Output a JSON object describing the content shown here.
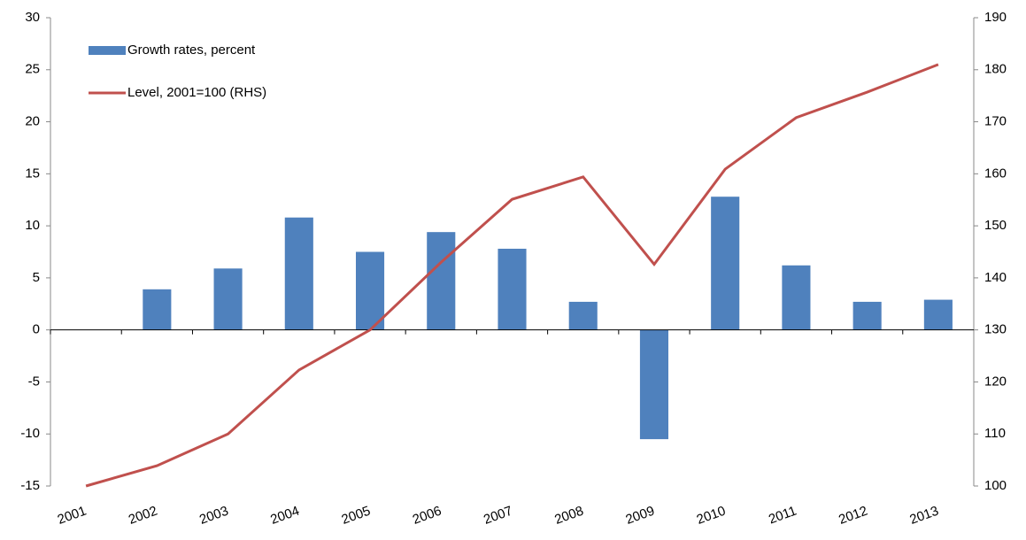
{
  "chart_data": {
    "type": "bar-line",
    "categories": [
      "2001",
      "2002",
      "2003",
      "2004",
      "2005",
      "2006",
      "2007",
      "2008",
      "2009",
      "2010",
      "2011",
      "2012",
      "2013"
    ],
    "series": [
      {
        "name": "Growth rates, percent",
        "type": "bar",
        "color": "#4f81bd",
        "axis": "y",
        "values": [
          null,
          3.9,
          5.9,
          10.8,
          7.5,
          9.4,
          7.8,
          2.7,
          -10.5,
          12.8,
          6.2,
          2.7,
          2.9
        ]
      },
      {
        "name": "Level, 2001=100 (RHS)",
        "type": "line",
        "color": "#c0504d",
        "axis": "y2",
        "values": [
          100,
          103.9,
          110,
          122.3,
          130,
          143,
          155.1,
          159.4,
          142.6,
          160.9,
          170.8,
          175.7,
          181
        ]
      }
    ],
    "ylim": [
      -15,
      30
    ],
    "yticks": [
      -15,
      -10,
      -5,
      0,
      5,
      10,
      15,
      20,
      25,
      30
    ],
    "y2lim": [
      100,
      190
    ],
    "y2ticks": [
      100,
      110,
      120,
      130,
      140,
      150,
      160,
      170,
      180,
      190
    ],
    "legend": "top-left"
  }
}
